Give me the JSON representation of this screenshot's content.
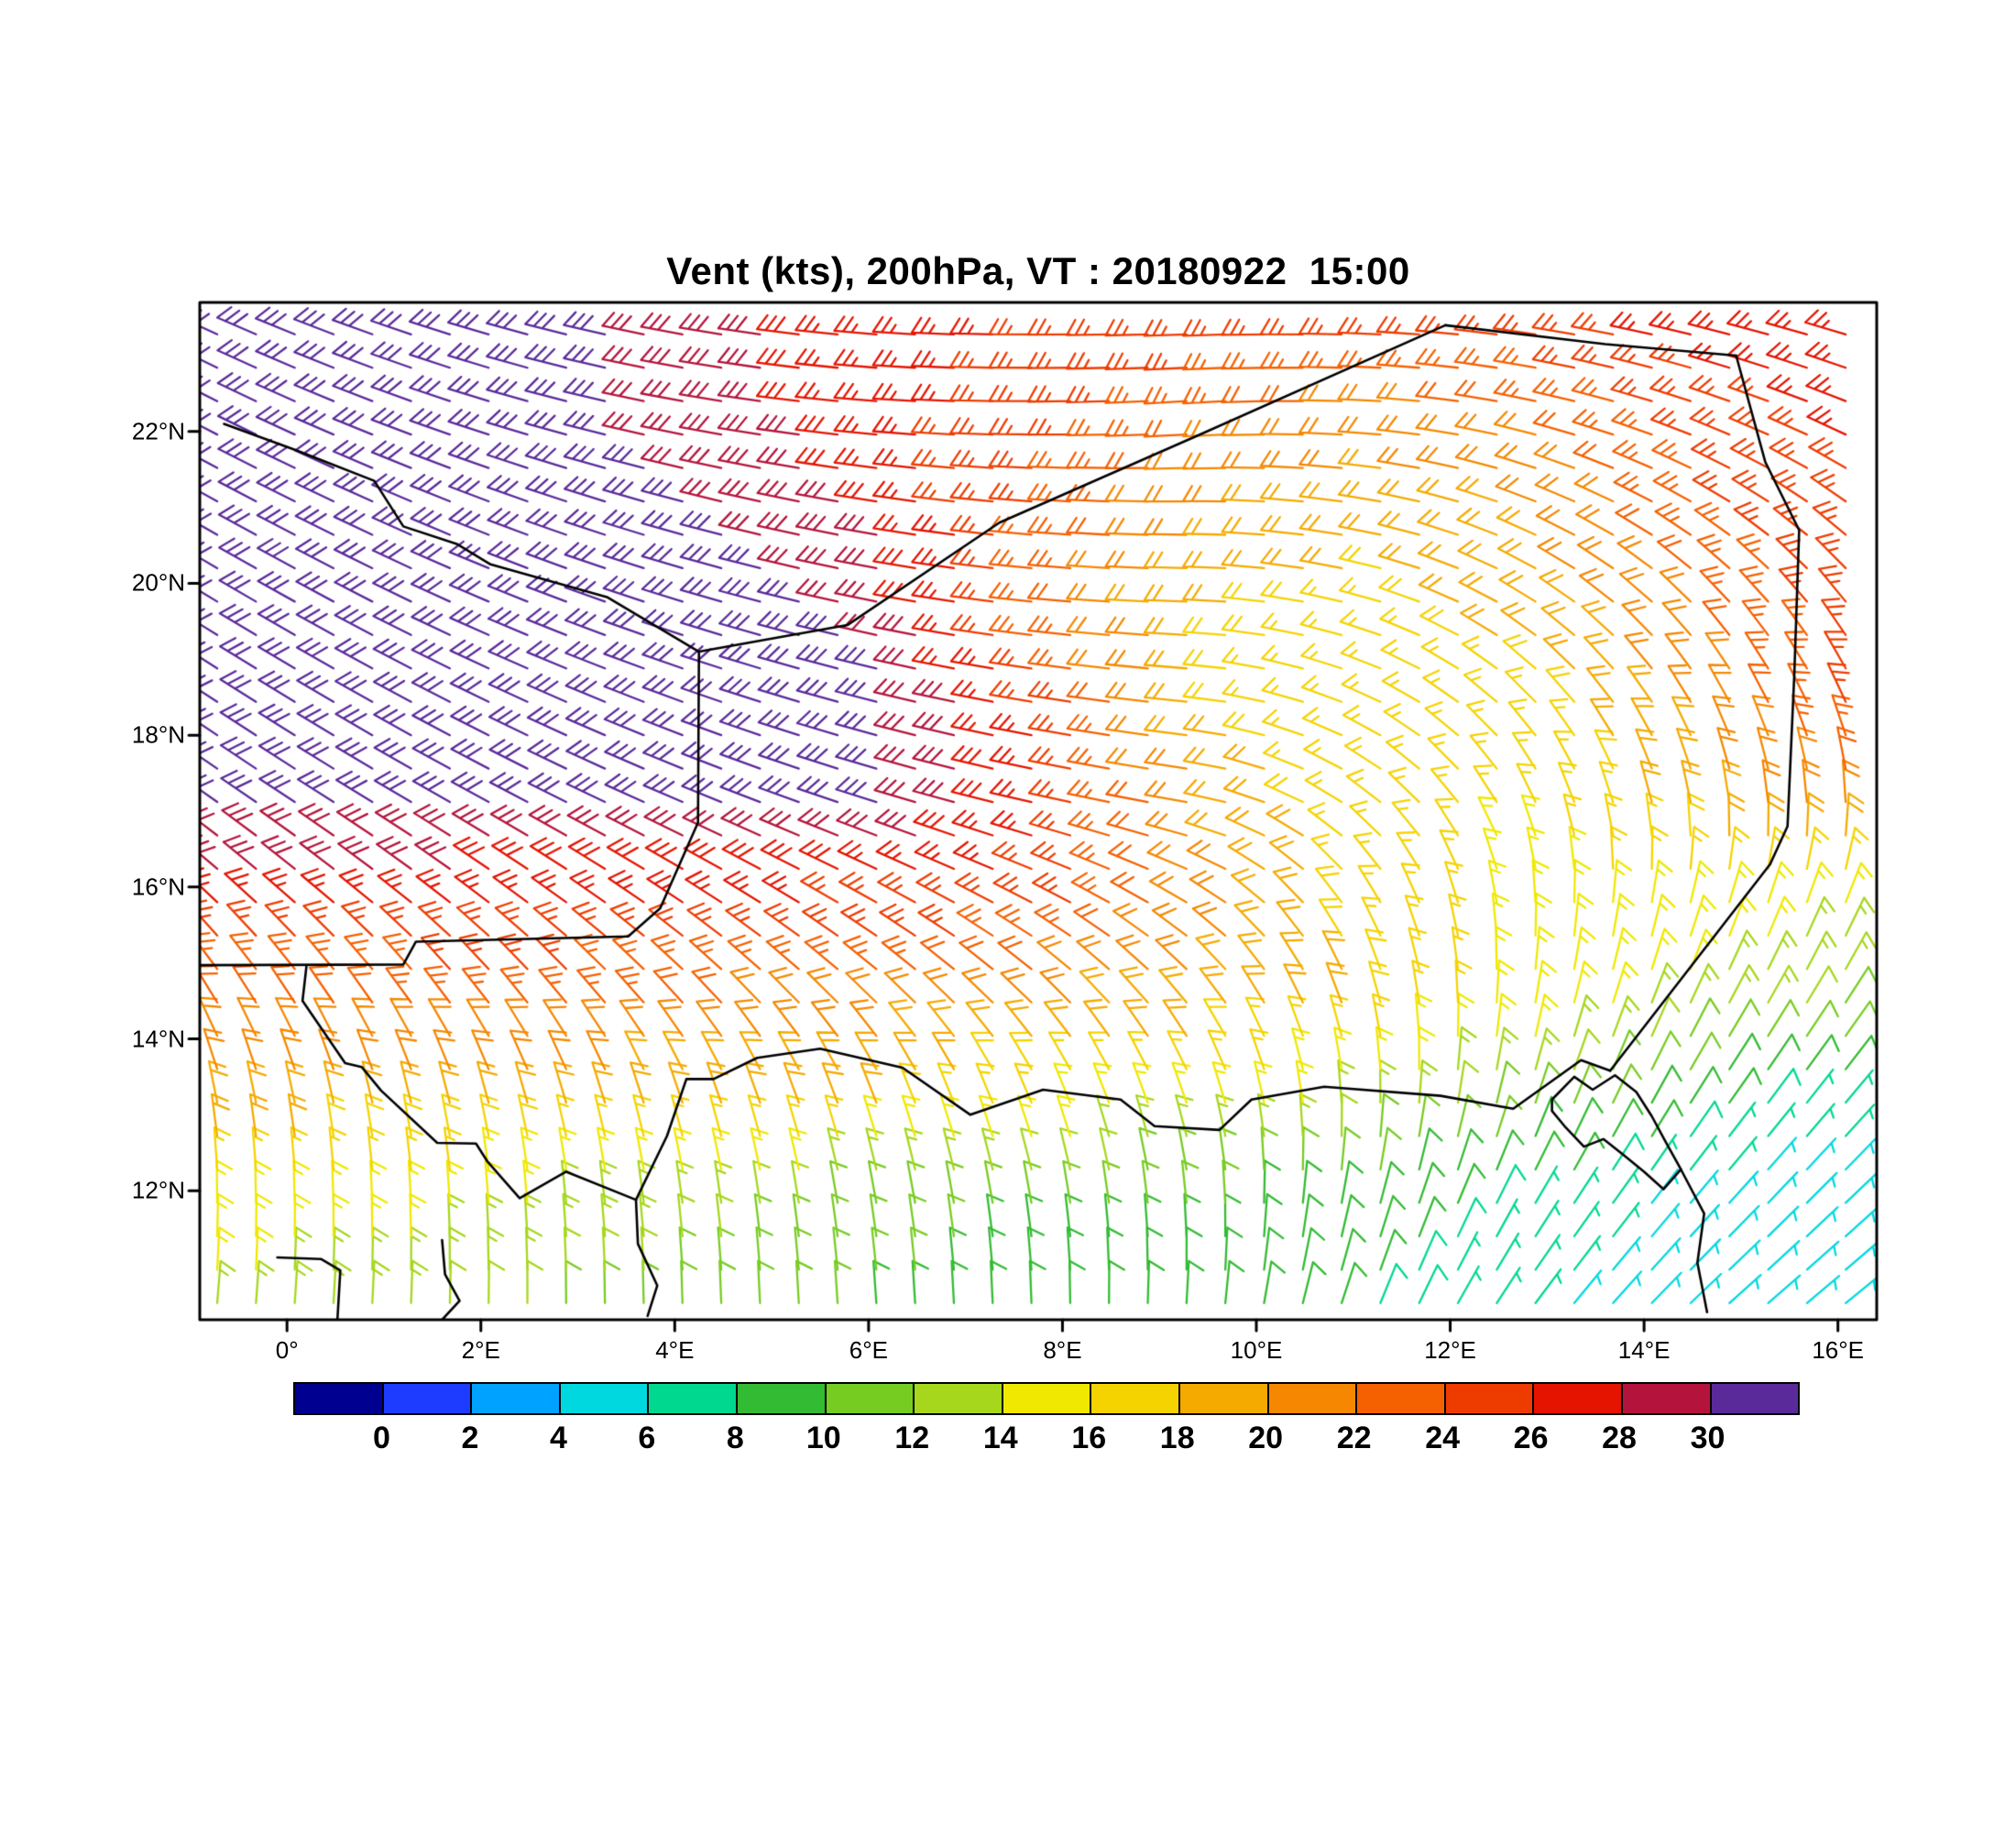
{
  "title": "Vent (kts), 200hPa, VT : 20180922  15:00",
  "axes": {
    "x": {
      "labels": [
        "0°",
        "2°E",
        "4°E",
        "6°E",
        "8°E",
        "10°E",
        "12°E",
        "14°E",
        "16°E"
      ],
      "values": [
        0,
        2,
        4,
        6,
        8,
        10,
        12,
        14,
        16
      ]
    },
    "y": {
      "labels": [
        "12°N",
        "14°N",
        "16°N",
        "18°N",
        "20°N",
        "22°N"
      ],
      "values": [
        12,
        14,
        16,
        18,
        20,
        22
      ]
    },
    "lon_range": [
      -0.9,
      16.4
    ],
    "lat_range": [
      10.3,
      23.7
    ]
  },
  "colorbar": {
    "tick_labels": [
      "0",
      "2",
      "4",
      "6",
      "8",
      "10",
      "12",
      "14",
      "16",
      "18",
      "20",
      "22",
      "24",
      "26",
      "28",
      "30"
    ],
    "tick_values": [
      0,
      2,
      4,
      6,
      8,
      10,
      12,
      14,
      16,
      18,
      20,
      22,
      24,
      26,
      28,
      30
    ],
    "units": "kts",
    "colors": [
      "#000090",
      "#1e3cff",
      "#00a2ff",
      "#00d8e0",
      "#00d890",
      "#33bb33",
      "#77cc22",
      "#a6d71c",
      "#f0e800",
      "#f5d300",
      "#f5aa00",
      "#f58800",
      "#f56000",
      "#ee3c00",
      "#e41400",
      "#b4143c",
      "#5a2a9a"
    ]
  },
  "chart_data": {
    "type": "heatmap",
    "mark": "wind_barb",
    "title": "Vent (kts), 200hPa, VT : 20180922  15:00",
    "variable": "wind",
    "units": "kts",
    "level": "200hPa",
    "valid_time": "20180922 15:00",
    "legend_position": "bottom",
    "grid": {
      "lons": [
        -1,
        0.75,
        2.5,
        4.25,
        6,
        7.75,
        9.5,
        11.25,
        13,
        14.75,
        16.5
      ],
      "lats": [
        23.5,
        22.2,
        20.9,
        19.6,
        18.3,
        17,
        15.7,
        14.4,
        13.1,
        11.8,
        10.5
      ],
      "speed_kts": [
        [
          31,
          31,
          31,
          29,
          27,
          26,
          26,
          25,
          26,
          27,
          27
        ],
        [
          32,
          32,
          31,
          29,
          27,
          25,
          22,
          21,
          22,
          25,
          27
        ],
        [
          32,
          32,
          31.5,
          30.5,
          28,
          24,
          20,
          19,
          20,
          24,
          26
        ],
        [
          32,
          32,
          31.5,
          31,
          30,
          23,
          18,
          17,
          19,
          22,
          26
        ],
        [
          31,
          31.5,
          31.5,
          31,
          30.5,
          26,
          18,
          16,
          17,
          21,
          25
        ],
        [
          30,
          30.5,
          30.5,
          30.5,
          30.2,
          27,
          20,
          16,
          16,
          19,
          22
        ],
        [
          27,
          26.5,
          26,
          26,
          25.5,
          25,
          21,
          17,
          15.5,
          15,
          14
        ],
        [
          22,
          22,
          23,
          22,
          21,
          20,
          19,
          18,
          15,
          13,
          11
        ],
        [
          20,
          19,
          19,
          18,
          18,
          16,
          15,
          13,
          11,
          8,
          6
        ],
        [
          15,
          15,
          14,
          13,
          11,
          10,
          10,
          9,
          7,
          5,
          5
        ],
        [
          14,
          13,
          12,
          11,
          10,
          9,
          9,
          8,
          6,
          5,
          4
        ]
      ],
      "dir_to_deg": [
        [
          115,
          110,
          105,
          100,
          95,
          90,
          88,
          92,
          98,
          103,
          106
        ],
        [
          118,
          112,
          106,
          100,
          95,
          90,
          86,
          93,
          103,
          110,
          113
        ],
        [
          120,
          115,
          110,
          105,
          100,
          95,
          90,
          100,
          113,
          122,
          128
        ],
        [
          122,
          118,
          112,
          107,
          102,
          96,
          92,
          106,
          124,
          138,
          144
        ],
        [
          124,
          120,
          115,
          110,
          105,
          100,
          96,
          115,
          138,
          152,
          158
        ],
        [
          126,
          122,
          118,
          113,
          108,
          103,
          100,
          128,
          158,
          172,
          180
        ],
        [
          135,
          130,
          127,
          124,
          120,
          118,
          122,
          150,
          180,
          198,
          205
        ],
        [
          150,
          146,
          142,
          138,
          135,
          135,
          142,
          165,
          192,
          208,
          215
        ],
        [
          170,
          168,
          165,
          162,
          160,
          158,
          162,
          180,
          200,
          215,
          222
        ],
        [
          180,
          178,
          175,
          172,
          170,
          170,
          175,
          195,
          212,
          222,
          228
        ],
        [
          185,
          183,
          180,
          178,
          176,
          178,
          184,
          202,
          218,
          228,
          232
        ]
      ]
    },
    "barb_grid_step_deg": {
      "lon": 0.4,
      "lat": 0.44
    },
    "speed_bin_width_kts": 2
  },
  "map": {
    "border_color": "#000000",
    "polylines": [
      [
        [
          -0.9,
          14.97
        ],
        [
          1.2,
          14.98
        ],
        [
          1.33,
          15.28
        ],
        [
          3.52,
          15.35
        ],
        [
          3.85,
          15.72
        ],
        [
          4.24,
          16.85
        ],
        [
          4.25,
          19.1
        ]
      ],
      [
        [
          4.25,
          19.1
        ],
        [
          5.78,
          19.45
        ],
        [
          7.35,
          20.8
        ],
        [
          9.4,
          21.95
        ],
        [
          11.95,
          23.4
        ]
      ],
      [
        [
          11.95,
          23.4
        ],
        [
          13.6,
          23.15
        ],
        [
          14.95,
          23.0
        ]
      ],
      [
        [
          14.95,
          23.0
        ],
        [
          15.25,
          21.6
        ],
        [
          15.6,
          20.7
        ],
        [
          15.55,
          18.8
        ],
        [
          15.48,
          16.8
        ],
        [
          15.3,
          16.3
        ],
        [
          13.65,
          13.58
        ]
      ],
      [
        [
          13.65,
          13.58
        ],
        [
          13.35,
          13.72
        ],
        [
          12.65,
          13.08
        ],
        [
          11.9,
          13.25
        ],
        [
          10.7,
          13.37
        ],
        [
          9.95,
          13.2
        ],
        [
          9.62,
          12.8
        ],
        [
          8.95,
          12.85
        ],
        [
          8.6,
          13.2
        ],
        [
          7.8,
          13.33
        ],
        [
          7.05,
          13.0
        ],
        [
          6.35,
          13.62
        ],
        [
          5.5,
          13.87
        ],
        [
          4.85,
          13.75
        ],
        [
          4.4,
          13.47
        ],
        [
          4.12,
          13.47
        ],
        [
          3.92,
          12.72
        ],
        [
          3.6,
          11.88
        ]
      ],
      [
        [
          3.6,
          11.88
        ],
        [
          2.88,
          12.25
        ],
        [
          2.4,
          11.9
        ],
        [
          2.07,
          12.38
        ],
        [
          1.95,
          12.62
        ],
        [
          1.55,
          12.63
        ],
        [
          0.97,
          13.32
        ],
        [
          0.77,
          13.63
        ],
        [
          0.6,
          13.68
        ],
        [
          0.16,
          14.5
        ],
        [
          0.2,
          14.95
        ]
      ],
      [
        [
          4.25,
          19.1
        ],
        [
          3.3,
          19.82
        ],
        [
          2.1,
          20.25
        ],
        [
          1.75,
          20.52
        ],
        [
          1.2,
          20.75
        ],
        [
          0.9,
          21.35
        ],
        [
          0.1,
          21.75
        ],
        [
          -0.65,
          22.1
        ]
      ],
      [
        [
          3.6,
          11.88
        ],
        [
          3.62,
          11.3
        ],
        [
          3.82,
          10.75
        ],
        [
          3.72,
          10.35
        ]
      ],
      [
        [
          1.6,
          11.35
        ],
        [
          1.63,
          10.9
        ],
        [
          1.78,
          10.55
        ],
        [
          1.6,
          10.3
        ]
      ],
      [
        [
          -0.1,
          11.12
        ],
        [
          0.35,
          11.1
        ],
        [
          0.55,
          10.95
        ],
        [
          0.52,
          10.3
        ]
      ],
      [
        [
          13.05,
          13.2
        ],
        [
          13.28,
          13.5
        ],
        [
          13.47,
          13.33
        ],
        [
          13.7,
          13.52
        ],
        [
          13.92,
          13.3
        ],
        [
          14.08,
          12.98
        ],
        [
          14.22,
          12.65
        ],
        [
          14.38,
          12.28
        ],
        [
          14.2,
          12.02
        ],
        [
          14.0,
          12.25
        ],
        [
          13.78,
          12.48
        ],
        [
          13.58,
          12.68
        ],
        [
          13.38,
          12.58
        ],
        [
          13.18,
          12.85
        ],
        [
          13.05,
          13.05
        ],
        [
          13.05,
          13.2
        ]
      ],
      [
        [
          14.38,
          12.28
        ],
        [
          14.62,
          11.7
        ],
        [
          14.55,
          11.05
        ],
        [
          14.65,
          10.4
        ]
      ]
    ]
  },
  "style": {
    "background": "#ffffff",
    "frame_color": "#000000"
  }
}
